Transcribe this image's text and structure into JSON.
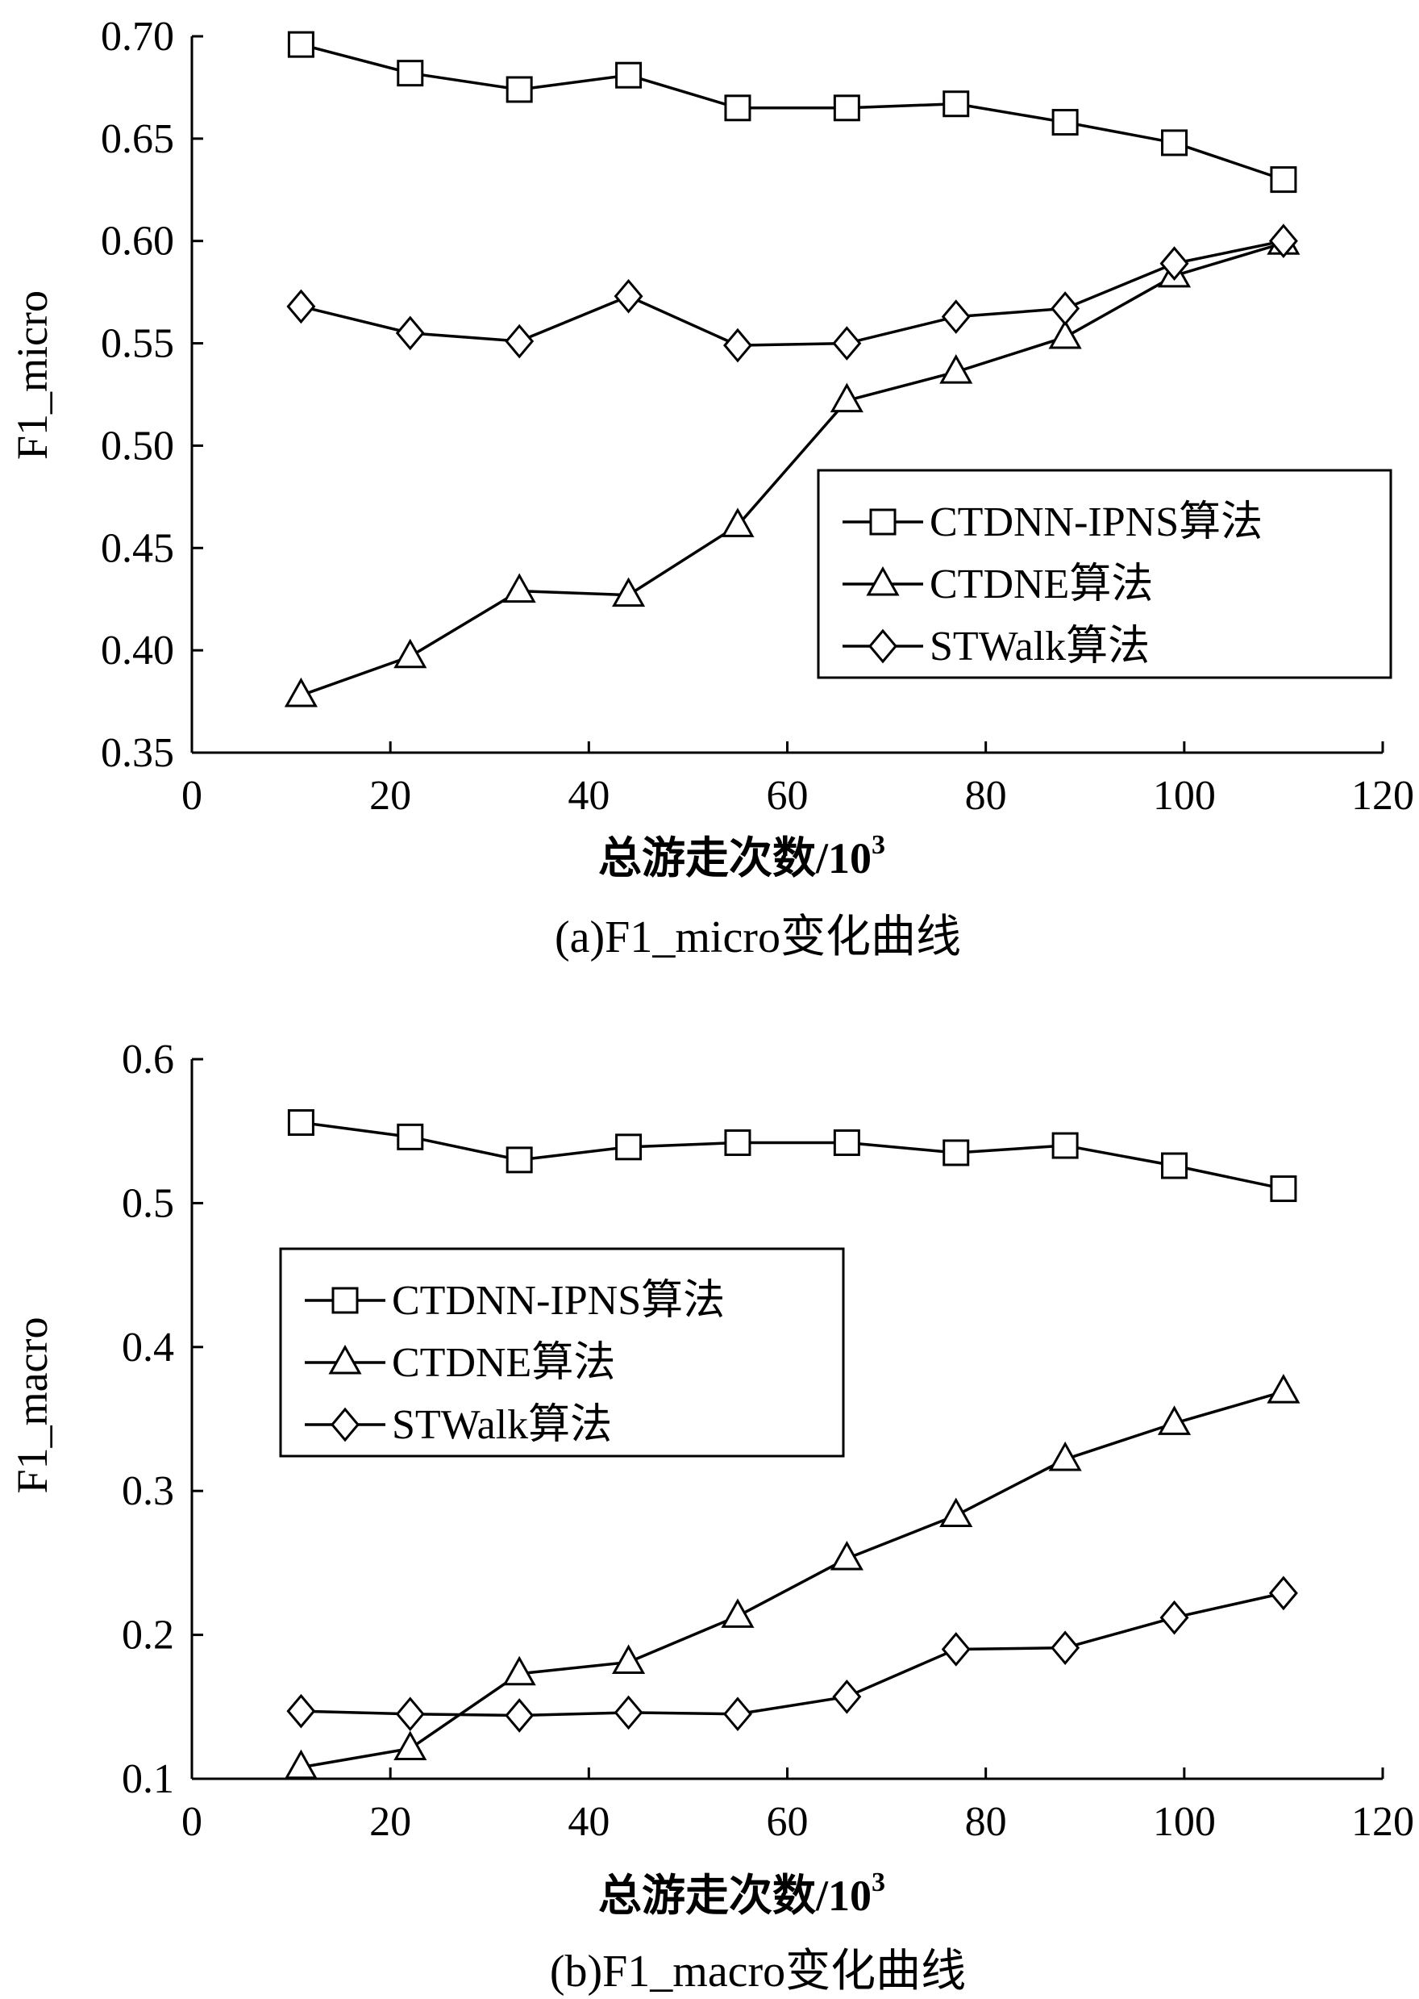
{
  "colors": {
    "line": "#000000",
    "background": "#ffffff"
  },
  "chart_data": [
    {
      "type": "line",
      "caption": "(a)F1_micro变化曲线",
      "xlabel": "总游走次数/10",
      "xlabel_sup": "3",
      "ylabel": "F1_micro",
      "xlim": [
        0,
        120
      ],
      "ylim": [
        0.35,
        0.7
      ],
      "xticks": [
        0,
        20,
        40,
        60,
        80,
        100,
        120
      ],
      "yticks": [
        0.35,
        0.4,
        0.45,
        0.5,
        0.55,
        0.6,
        0.65,
        0.7
      ],
      "ytick_decimals": 2,
      "grid": false,
      "legend_position": "lower-right",
      "x": [
        11,
        22,
        33,
        44,
        55,
        66,
        77,
        88,
        99,
        110
      ],
      "series": [
        {
          "name": "CTDNN-IPNS算法",
          "marker": "square",
          "values": [
            0.696,
            0.682,
            0.674,
            0.681,
            0.665,
            0.665,
            0.667,
            0.658,
            0.648,
            0.63
          ]
        },
        {
          "name": "CTDNE算法",
          "marker": "triangle",
          "values": [
            0.378,
            0.397,
            0.429,
            0.427,
            0.461,
            0.522,
            0.536,
            0.553,
            0.583,
            0.599
          ]
        },
        {
          "name": "STWalk算法",
          "marker": "diamond",
          "values": [
            0.568,
            0.555,
            0.551,
            0.573,
            0.549,
            0.55,
            0.563,
            0.567,
            0.589,
            0.6
          ]
        }
      ]
    },
    {
      "type": "line",
      "caption": "(b)F1_macro变化曲线",
      "xlabel": "总游走次数/10",
      "xlabel_sup": "3",
      "ylabel": "F1_macro",
      "xlim": [
        0,
        120
      ],
      "ylim": [
        0.1,
        0.6
      ],
      "xticks": [
        0,
        20,
        40,
        60,
        80,
        100,
        120
      ],
      "yticks": [
        0.1,
        0.2,
        0.3,
        0.4,
        0.5,
        0.6
      ],
      "ytick_decimals": 1,
      "grid": false,
      "legend_position": "upper-left",
      "x": [
        11,
        22,
        33,
        44,
        55,
        66,
        77,
        88,
        99,
        110
      ],
      "series": [
        {
          "name": "CTDNN-IPNS算法",
          "marker": "square",
          "values": [
            0.556,
            0.546,
            0.53,
            0.539,
            0.542,
            0.542,
            0.535,
            0.54,
            0.526,
            0.51
          ]
        },
        {
          "name": "CTDNE算法",
          "marker": "triangle",
          "values": [
            0.108,
            0.121,
            0.173,
            0.181,
            0.213,
            0.253,
            0.283,
            0.322,
            0.347,
            0.369
          ]
        },
        {
          "name": "STWalk算法",
          "marker": "diamond",
          "values": [
            0.147,
            0.145,
            0.144,
            0.146,
            0.145,
            0.157,
            0.19,
            0.191,
            0.212,
            0.229
          ]
        }
      ]
    }
  ]
}
